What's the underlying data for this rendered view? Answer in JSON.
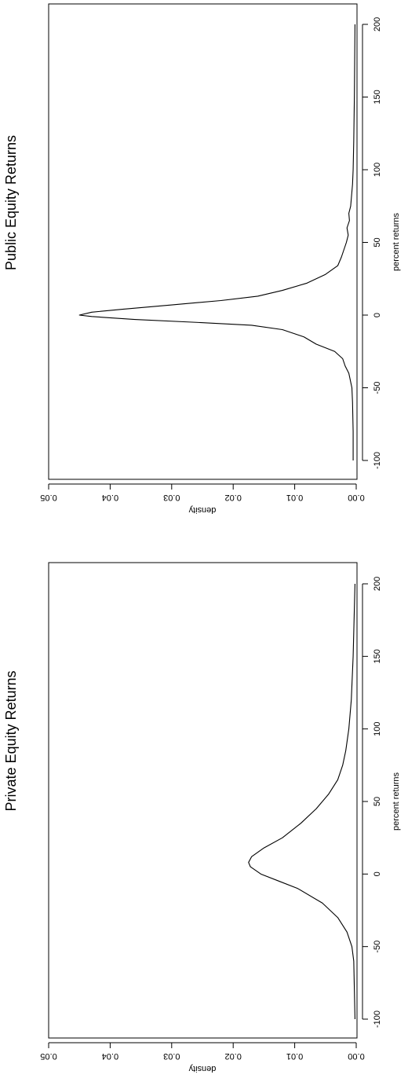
{
  "colors": {
    "line": "#000000",
    "background": "#ffffff"
  },
  "orientation": "rotated 90 degrees clockwise",
  "chart_data": [
    {
      "type": "line",
      "title": "Public Equity Returns",
      "xlabel": "percent returns",
      "ylabel": "density",
      "xlim": [
        -100,
        200
      ],
      "ylim": [
        0,
        0.05
      ],
      "x_ticks": [
        "-100",
        "-50",
        "0",
        "50",
        "100",
        "150",
        "200"
      ],
      "y_ticks": [
        "0.00",
        "0.01",
        "0.02",
        "0.03",
        "0.04",
        "0.05"
      ],
      "grid": false,
      "legend": "none",
      "series": [
        {
          "x": [
            -100,
            -80,
            -60,
            -50,
            -40,
            -35,
            -30,
            -25,
            -20,
            -15,
            -10,
            -7,
            -5,
            -3,
            -1,
            0,
            2,
            4,
            7,
            10,
            13,
            17,
            22,
            28,
            34,
            40,
            45,
            50,
            55,
            60,
            65,
            70,
            75,
            80,
            90,
            100,
            120,
            150,
            200
          ],
          "y": [
            0.0005,
            0.0005,
            0.0006,
            0.0007,
            0.0012,
            0.0018,
            0.0022,
            0.0035,
            0.0065,
            0.0085,
            0.012,
            0.017,
            0.026,
            0.036,
            0.043,
            0.045,
            0.043,
            0.038,
            0.03,
            0.022,
            0.016,
            0.012,
            0.008,
            0.005,
            0.003,
            0.0024,
            0.002,
            0.0016,
            0.0013,
            0.0015,
            0.0011,
            0.0012,
            0.0009,
            0.0008,
            0.0006,
            0.0005,
            0.0004,
            0.0003,
            0.0002
          ]
        }
      ]
    },
    {
      "type": "line",
      "title": "Private Equity Returns",
      "xlabel": "percent returns",
      "ylabel": "density",
      "xlim": [
        -100,
        200
      ],
      "ylim": [
        0,
        0.05
      ],
      "x_ticks": [
        "-100",
        "-50",
        "0",
        "50",
        "100",
        "150",
        "200"
      ],
      "y_ticks": [
        "0.00",
        "0.01",
        "0.02",
        "0.03",
        "0.04",
        "0.05"
      ],
      "grid": false,
      "legend": "none",
      "series": [
        {
          "x": [
            -100,
            -80,
            -60,
            -50,
            -40,
            -30,
            -20,
            -10,
            -5,
            0,
            5,
            8,
            12,
            18,
            25,
            35,
            45,
            55,
            65,
            75,
            85,
            100,
            120,
            150,
            200
          ],
          "y": [
            0.0002,
            0.0003,
            0.0004,
            0.0007,
            0.0015,
            0.003,
            0.0055,
            0.0095,
            0.0125,
            0.0155,
            0.0172,
            0.0175,
            0.017,
            0.015,
            0.012,
            0.009,
            0.0065,
            0.0045,
            0.003,
            0.0022,
            0.0017,
            0.0012,
            0.0008,
            0.0005,
            0.0002
          ]
        }
      ]
    }
  ]
}
